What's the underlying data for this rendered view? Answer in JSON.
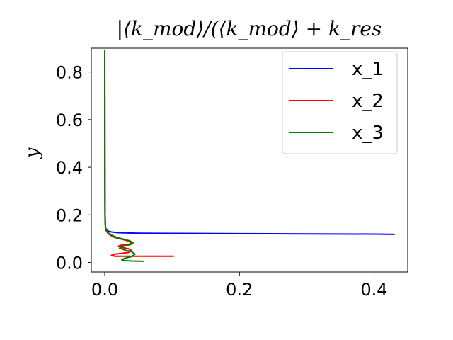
{
  "chart_data": {
    "type": "line",
    "title": "|⟨k_mod⟩/(⟨k_mod⟩ + k_res",
    "xlabel": "",
    "ylabel": "y",
    "xlim": [
      -0.02,
      0.45
    ],
    "ylim": [
      -0.04,
      0.9
    ],
    "xticks": [
      "0.0",
      "0.2",
      "0.4"
    ],
    "xtick_values": [
      0.0,
      0.2,
      0.4
    ],
    "yticks": [
      "0.0",
      "0.2",
      "0.4",
      "0.6",
      "0.8"
    ],
    "ytick_values": [
      0.0,
      0.2,
      0.4,
      0.6,
      0.8
    ],
    "grid": false,
    "legend_position": "top-right",
    "series": [
      {
        "name": "x_1",
        "color": "#0000ff",
        "x": [
          0.43,
          0.4,
          0.3,
          0.2,
          0.1,
          0.05,
          0.02,
          0.01,
          0.005,
          0.002,
          0.001,
          0.0005,
          0.0003,
          0.0002,
          0.0001,
          0.0,
          0.0
        ],
        "y": [
          0.118,
          0.119,
          0.12,
          0.121,
          0.122,
          0.123,
          0.125,
          0.128,
          0.132,
          0.14,
          0.15,
          0.17,
          0.2,
          0.3,
          0.5,
          0.7,
          0.89
        ]
      },
      {
        "name": "x_2",
        "color": "#ff0000",
        "x": [
          0.102,
          0.05,
          0.015,
          0.01,
          0.015,
          0.025,
          0.035,
          0.04,
          0.035,
          0.025,
          0.02,
          0.025,
          0.035,
          0.04,
          0.035,
          0.025,
          0.015,
          0.008,
          0.004,
          0.002,
          0.001,
          0.0005,
          0.0002,
          0.0001,
          0.0
        ],
        "y": [
          0.026,
          0.026,
          0.026,
          0.03,
          0.035,
          0.038,
          0.042,
          0.05,
          0.058,
          0.063,
          0.068,
          0.073,
          0.076,
          0.082,
          0.09,
          0.098,
          0.105,
          0.115,
          0.125,
          0.135,
          0.15,
          0.2,
          0.4,
          0.7,
          0.89
        ]
      },
      {
        "name": "x_3",
        "color": "#008000",
        "x": [
          0.057,
          0.04,
          0.03,
          0.025,
          0.03,
          0.04,
          0.045,
          0.04,
          0.03,
          0.022,
          0.028,
          0.038,
          0.042,
          0.038,
          0.028,
          0.018,
          0.01,
          0.005,
          0.002,
          0.001,
          0.0005,
          0.0002,
          0.0001,
          0.0
        ],
        "y": [
          0.005,
          0.006,
          0.008,
          0.012,
          0.018,
          0.025,
          0.035,
          0.045,
          0.052,
          0.06,
          0.068,
          0.075,
          0.082,
          0.09,
          0.098,
          0.105,
          0.115,
          0.125,
          0.138,
          0.15,
          0.2,
          0.4,
          0.7,
          0.89
        ]
      }
    ]
  }
}
